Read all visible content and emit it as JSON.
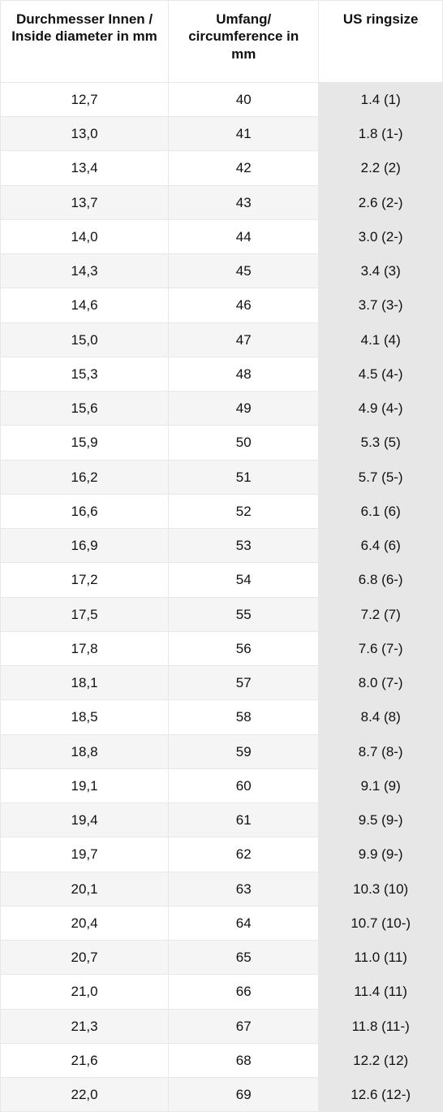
{
  "table": {
    "type": "table",
    "background_color": "#ffffff",
    "row_stripe_color": "#f5f5f5",
    "shaded_column_color": "#e7e7e7",
    "border_color": "#e8e8e8",
    "text_color": "#111111",
    "header_fontsize_pt": 13,
    "cell_fontsize_pt": 13,
    "column_widths_percent": [
      38,
      34,
      28
    ],
    "alignment": [
      "center",
      "center",
      "center"
    ],
    "columns": [
      "Durchmesser Innen / Inside diameter in mm",
      "Umfang/ circumference in mm",
      "US ringsize"
    ],
    "rows": [
      [
        "12,7",
        "40",
        "1.4 (1)"
      ],
      [
        "13,0",
        "41",
        "1.8 (1-)"
      ],
      [
        "13,4",
        "42",
        "2.2 (2)"
      ],
      [
        "13,7",
        "43",
        "2.6 (2-)"
      ],
      [
        "14,0",
        "44",
        "3.0 (2-)"
      ],
      [
        "14,3",
        "45",
        "3.4 (3)"
      ],
      [
        "14,6",
        "46",
        "3.7 (3-)"
      ],
      [
        "15,0",
        "47",
        "4.1 (4)"
      ],
      [
        "15,3",
        "48",
        "4.5 (4-)"
      ],
      [
        "15,6",
        "49",
        "4.9 (4-)"
      ],
      [
        "15,9",
        "50",
        "5.3 (5)"
      ],
      [
        "16,2",
        "51",
        "5.7 (5-)"
      ],
      [
        "16,6",
        "52",
        "6.1 (6)"
      ],
      [
        "16,9",
        "53",
        "6.4 (6)"
      ],
      [
        "17,2",
        "54",
        "6.8 (6-)"
      ],
      [
        "17,5",
        "55",
        "7.2 (7)"
      ],
      [
        "17,8",
        "56",
        "7.6 (7-)"
      ],
      [
        "18,1",
        "57",
        "8.0 (7-)"
      ],
      [
        "18,5",
        "58",
        "8.4 (8)"
      ],
      [
        "18,8",
        "59",
        "8.7 (8-)"
      ],
      [
        "19,1",
        "60",
        "9.1 (9)"
      ],
      [
        "19,4",
        "61",
        "9.5 (9-)"
      ],
      [
        "19,7",
        "62",
        "9.9 (9-)"
      ],
      [
        "20,1",
        "63",
        "10.3 (10)"
      ],
      [
        "20,4",
        "64",
        "10.7 (10-)"
      ],
      [
        "20,7",
        "65",
        "11.0 (11)"
      ],
      [
        "21,0",
        "66",
        "11.4 (11)"
      ],
      [
        "21,3",
        "67",
        "11.8 (11-)"
      ],
      [
        "21,6",
        "68",
        "12.2 (12)"
      ],
      [
        "22,0",
        "69",
        "12.6 (12-)"
      ]
    ]
  }
}
